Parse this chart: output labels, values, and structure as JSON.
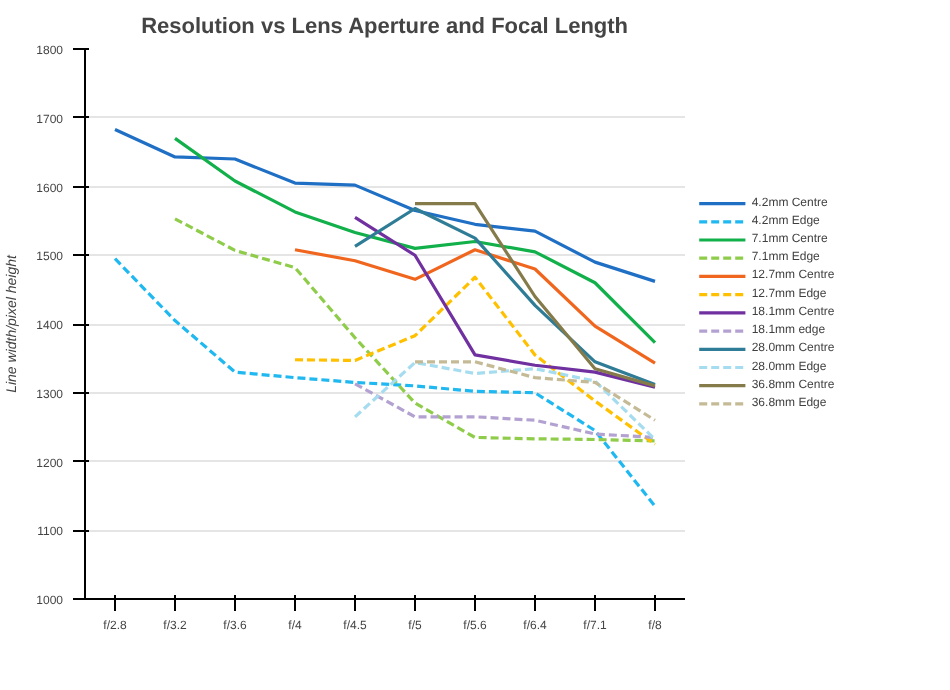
{
  "chart_data": {
    "type": "line",
    "title": "Resolution vs Lens Aperture and Focal Length",
    "ylabel": "Line width/pixel height",
    "categories": [
      "f/2.8",
      "f/3.2",
      "f/3.6",
      "f/4",
      "f/4.5",
      "f/5",
      "f/5.6",
      "f/6.4",
      "f/7.1",
      "f/8"
    ],
    "ylim": [
      1000,
      1800
    ],
    "yticks": [
      1000,
      1100,
      1200,
      1300,
      1400,
      1500,
      1600,
      1700,
      1800
    ],
    "grid": "y",
    "legend": "right",
    "series": [
      {
        "name": "4.2mm Centre",
        "color": "#1f6fc5",
        "line_style": "solid",
        "values": [
          1683,
          1643,
          1640,
          1605,
          1602,
          1565,
          1545,
          1535,
          1490,
          1462
        ]
      },
      {
        "name": "4.2mm Edge",
        "color": "#1fb8f0",
        "line_style": "dashed",
        "values": [
          1495,
          1405,
          1330,
          1322,
          1315,
          1310,
          1302,
          1300,
          1245,
          1135
        ]
      },
      {
        "name": "7.1mm Centre",
        "color": "#12b04a",
        "line_style": "solid",
        "values": [
          null,
          1670,
          1608,
          1563,
          1533,
          1510,
          1520,
          1505,
          1460,
          1373
        ]
      },
      {
        "name": "7.1mm Edge",
        "color": "#8fcc4a",
        "line_style": "dashed",
        "values": [
          null,
          1553,
          1507,
          1482,
          1380,
          1285,
          1235,
          1233,
          1232,
          1230
        ]
      },
      {
        "name": "12.7mm Centre",
        "color": "#f0661e",
        "line_style": "solid",
        "values": [
          null,
          null,
          null,
          1508,
          1492,
          1465,
          1508,
          1480,
          1397,
          1343
        ]
      },
      {
        "name": "12.7mm Edge",
        "color": "#ffc000",
        "line_style": "dashed",
        "values": [
          null,
          null,
          null,
          1348,
          1347,
          1383,
          1468,
          1355,
          1288,
          1225
        ]
      },
      {
        "name": "18.1mm Centre",
        "color": "#7030a0",
        "line_style": "solid",
        "values": [
          null,
          null,
          null,
          null,
          1555,
          1500,
          1355,
          1340,
          1330,
          1308
        ]
      },
      {
        "name": "18.1mm edge",
        "color": "#b3a2d1",
        "line_style": "dashed",
        "values": [
          null,
          null,
          null,
          null,
          1313,
          1265,
          1265,
          1260,
          1240,
          1235
        ]
      },
      {
        "name": "28.0mm Centre",
        "color": "#2e7c96",
        "line_style": "solid",
        "values": [
          null,
          null,
          null,
          null,
          1513,
          1568,
          1525,
          1427,
          1345,
          1312
        ]
      },
      {
        "name": "28.0mm Edge",
        "color": "#a6dcef",
        "line_style": "dashed",
        "values": [
          null,
          null,
          null,
          null,
          1265,
          1344,
          1328,
          1335,
          1317,
          1232
        ]
      },
      {
        "name": "36.8mm Centre",
        "color": "#857a4a",
        "line_style": "solid",
        "values": [
          null,
          null,
          null,
          null,
          null,
          1575,
          1575,
          1440,
          1335,
          1310
        ]
      },
      {
        "name": "36.8mm Edge",
        "color": "#c4bb96",
        "line_style": "dashed",
        "values": [
          null,
          null,
          null,
          null,
          null,
          1345,
          1345,
          1322,
          1315,
          1260
        ]
      }
    ]
  }
}
